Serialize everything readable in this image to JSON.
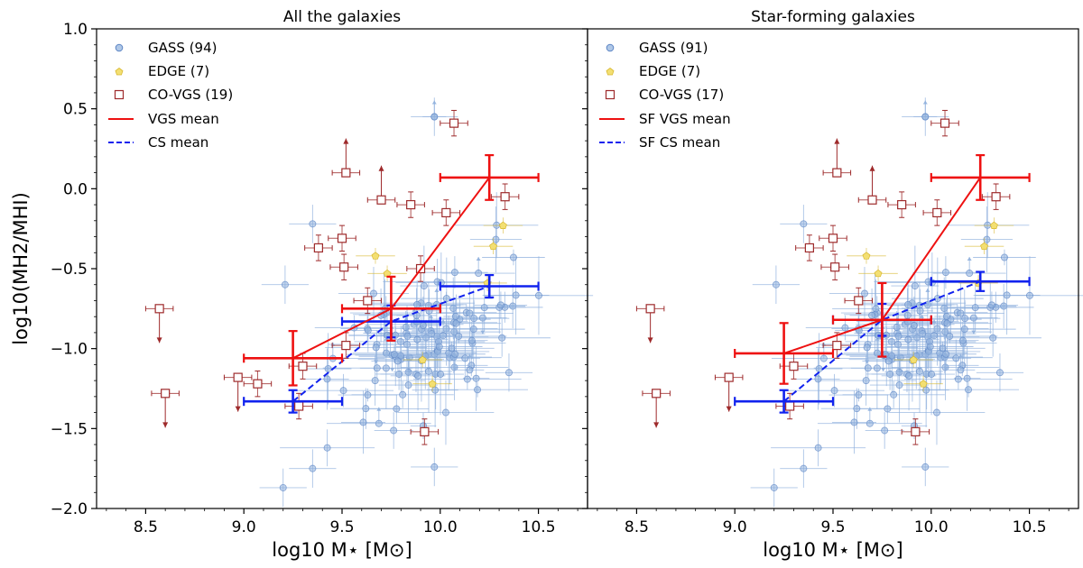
{
  "colors": {
    "gass": "#8fb0dd",
    "gass_edge": "#5b84c4",
    "edge_face": "#f3df72",
    "edge_edge": "#d8b830",
    "covgs": "#9e2a2b",
    "vgs_mean": "#ee1111",
    "cs_mean": "#1122ee"
  },
  "chart_data": [
    {
      "type": "scatter",
      "title": "All the galaxies",
      "xlabel": "log10 M⋆ [M⊙]",
      "ylabel": "log10(MH2/MHI)",
      "xlim": [
        8.25,
        10.75
      ],
      "ylim": [
        -2.0,
        1.0
      ],
      "xticks": [
        "8.5",
        "9.0",
        "9.5",
        "10.0",
        "10.5"
      ],
      "yticks": [
        "1.0",
        "0.5",
        "0.0",
        "−0.5",
        "−1.0",
        "−1.5",
        "−2.0"
      ],
      "legend": [
        "GASS (94)",
        "EDGE (7)",
        "CO-VGS (19)",
        "VGS mean",
        "CS mean"
      ],
      "covgs": [
        {
          "x": 8.57,
          "y": -0.75,
          "upper_limit": true
        },
        {
          "x": 8.6,
          "y": -1.28,
          "upper_limit": true
        },
        {
          "x": 8.97,
          "y": -1.18,
          "upper_limit": true
        },
        {
          "x": 9.07,
          "y": -1.22
        },
        {
          "x": 9.3,
          "y": -1.11
        },
        {
          "x": 9.28,
          "y": -1.36
        },
        {
          "x": 9.38,
          "y": -0.37
        },
        {
          "x": 9.5,
          "y": -0.31
        },
        {
          "x": 9.51,
          "y": -0.49
        },
        {
          "x": 9.52,
          "y": 0.1,
          "lower_limit": true
        },
        {
          "x": 9.52,
          "y": -0.98
        },
        {
          "x": 9.63,
          "y": -0.7
        },
        {
          "x": 9.7,
          "y": -0.07,
          "lower_limit": true
        },
        {
          "x": 9.85,
          "y": -0.1
        },
        {
          "x": 9.9,
          "y": -0.5
        },
        {
          "x": 9.92,
          "y": -1.52
        },
        {
          "x": 10.03,
          "y": -0.15
        },
        {
          "x": 10.07,
          "y": 0.41
        },
        {
          "x": 10.33,
          "y": -0.05
        }
      ],
      "edge": [
        {
          "x": 9.67,
          "y": -0.42
        },
        {
          "x": 9.73,
          "y": -0.53
        },
        {
          "x": 9.91,
          "y": -1.07
        },
        {
          "x": 9.96,
          "y": -1.22
        },
        {
          "x": 10.27,
          "y": -0.36
        },
        {
          "x": 10.32,
          "y": -0.23
        },
        {
          "x": 10.24,
          "y": -0.59
        }
      ],
      "vgs_mean": [
        {
          "x": 9.25,
          "y": -1.06,
          "xerr": 0.25,
          "yerr": 0.17
        },
        {
          "x": 9.75,
          "y": -0.75,
          "xerr": 0.25,
          "yerr": 0.2
        },
        {
          "x": 10.25,
          "y": 0.07,
          "xerr": 0.25,
          "yerr": 0.14
        }
      ],
      "cs_mean": [
        {
          "x": 9.25,
          "y": -1.33,
          "xerr": 0.25,
          "yerr": 0.07
        },
        {
          "x": 9.75,
          "y": -0.83,
          "xerr": 0.25,
          "yerr": 0.1
        },
        {
          "x": 10.25,
          "y": -0.61,
          "xerr": 0.25,
          "yerr": 0.07
        }
      ]
    },
    {
      "type": "scatter",
      "title": "Star-forming galaxies",
      "xlabel": "log10 M⋆ [M⊙]",
      "ylabel": "",
      "xlim": [
        8.25,
        10.75
      ],
      "ylim": [
        -2.0,
        1.0
      ],
      "xticks": [
        "8.5",
        "9.0",
        "9.5",
        "10.0",
        "10.5"
      ],
      "yticks": [],
      "legend": [
        "GASS (91)",
        "EDGE (7)",
        "CO-VGS (17)",
        "SF VGS mean",
        "SF CS mean"
      ],
      "covgs": [
        {
          "x": 8.57,
          "y": -0.75,
          "upper_limit": true
        },
        {
          "x": 8.6,
          "y": -1.28,
          "upper_limit": true
        },
        {
          "x": 8.97,
          "y": -1.18,
          "upper_limit": true
        },
        {
          "x": 9.3,
          "y": -1.11
        },
        {
          "x": 9.28,
          "y": -1.36
        },
        {
          "x": 9.38,
          "y": -0.37
        },
        {
          "x": 9.5,
          "y": -0.31
        },
        {
          "x": 9.51,
          "y": -0.49
        },
        {
          "x": 9.52,
          "y": 0.1,
          "lower_limit": true
        },
        {
          "x": 9.52,
          "y": -0.98
        },
        {
          "x": 9.63,
          "y": -0.7
        },
        {
          "x": 9.7,
          "y": -0.07,
          "lower_limit": true
        },
        {
          "x": 9.85,
          "y": -0.1
        },
        {
          "x": 9.92,
          "y": -1.52
        },
        {
          "x": 10.03,
          "y": -0.15
        },
        {
          "x": 10.07,
          "y": 0.41
        },
        {
          "x": 10.33,
          "y": -0.05
        }
      ],
      "edge": [
        {
          "x": 9.67,
          "y": -0.42
        },
        {
          "x": 9.73,
          "y": -0.53
        },
        {
          "x": 9.91,
          "y": -1.07
        },
        {
          "x": 9.96,
          "y": -1.22
        },
        {
          "x": 10.27,
          "y": -0.36
        },
        {
          "x": 10.32,
          "y": -0.23
        },
        {
          "x": 10.24,
          "y": -0.59
        }
      ],
      "vgs_mean": [
        {
          "x": 9.25,
          "y": -1.03,
          "xerr": 0.25,
          "yerr": 0.19
        },
        {
          "x": 9.75,
          "y": -0.82,
          "xerr": 0.25,
          "yerr": 0.23
        },
        {
          "x": 10.25,
          "y": 0.07,
          "xerr": 0.25,
          "yerr": 0.14
        }
      ],
      "cs_mean": [
        {
          "x": 9.25,
          "y": -1.33,
          "xerr": 0.25,
          "yerr": 0.07
        },
        {
          "x": 9.75,
          "y": -0.82,
          "xerr": 0.25,
          "yerr": 0.1
        },
        {
          "x": 10.25,
          "y": -0.58,
          "xerr": 0.25,
          "yerr": 0.06
        }
      ]
    }
  ]
}
